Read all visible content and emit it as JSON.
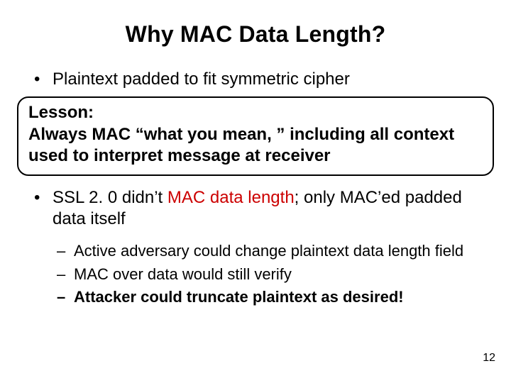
{
  "slide": {
    "title": "Why MAC Data Length?",
    "page_number": "12",
    "background_color": "#ffffff",
    "text_color": "#000000",
    "accent_red": "#cc0000",
    "title_fontsize": 32,
    "body_fontsize": 24,
    "sub_fontsize": 22,
    "callout_border_radius": 16
  },
  "bullets": {
    "b1": "Plaintext padded to fit symmetric cipher",
    "b2_pre": "SSL 2. 0 didn’t ",
    "b2_red": "MAC data length",
    "b2_post": "; only MAC’ed padded data itself",
    "b2_s1": "Active adversary could change plaintext data length field",
    "b2_s2": "MAC over data would still verify",
    "b2_s3": "Attacker could truncate plaintext as desired!"
  },
  "callout": {
    "line1": "Lesson:",
    "line2": "Always MAC “what you mean, ” including all context used to interpret message at receiver"
  }
}
